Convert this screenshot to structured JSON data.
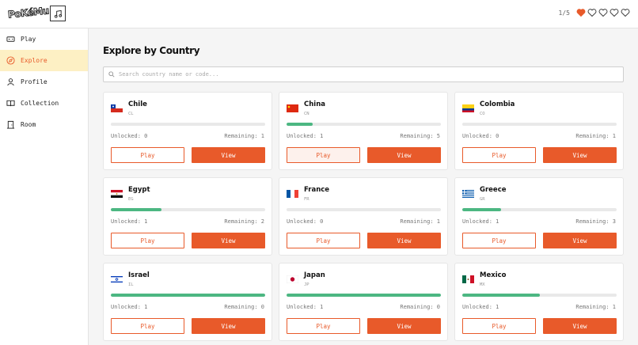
{
  "app": {
    "logo_text": "PoKéMu"
  },
  "header": {
    "lives_label": "1/5",
    "hearts": [
      true,
      false,
      false,
      false,
      false
    ],
    "heart_color": "#e85a2a"
  },
  "sidebar": {
    "items": [
      {
        "label": "Play",
        "icon": "gamepad-icon",
        "active": false
      },
      {
        "label": "Explore",
        "icon": "compass-icon",
        "active": true
      },
      {
        "label": "Profile",
        "icon": "user-icon",
        "active": false
      },
      {
        "label": "Collection",
        "icon": "book-icon",
        "active": false
      },
      {
        "label": "Room",
        "icon": "door-icon",
        "active": false
      }
    ]
  },
  "main": {
    "title": "Explore by Country",
    "search": {
      "placeholder": "Search country name or code...",
      "value": ""
    },
    "unlocked_label": "Unlocked:",
    "remaining_label": "Remaining:",
    "play_label": "Play",
    "view_label": "View",
    "countries": [
      {
        "name": "Chile",
        "code": "CL",
        "unlocked": 0,
        "remaining": 1,
        "progress": 0.0,
        "flag": "chile-flag-icon"
      },
      {
        "name": "China",
        "code": "CN",
        "unlocked": 1,
        "remaining": 5,
        "progress": 0.17,
        "flag": "china-flag-icon"
      },
      {
        "name": "Colombia",
        "code": "CO",
        "unlocked": 0,
        "remaining": 1,
        "progress": 0.0,
        "flag": "colombia-flag-icon"
      },
      {
        "name": "Egypt",
        "code": "EG",
        "unlocked": 1,
        "remaining": 2,
        "progress": 0.33,
        "flag": "egypt-flag-icon"
      },
      {
        "name": "France",
        "code": "FR",
        "unlocked": 0,
        "remaining": 1,
        "progress": 0.0,
        "flag": "france-flag-icon"
      },
      {
        "name": "Greece",
        "code": "GR",
        "unlocked": 1,
        "remaining": 3,
        "progress": 0.25,
        "flag": "greece-flag-icon"
      },
      {
        "name": "Israel",
        "code": "IL",
        "unlocked": 1,
        "remaining": 0,
        "progress": 1.0,
        "flag": "israel-flag-icon"
      },
      {
        "name": "Japan",
        "code": "JP",
        "unlocked": 1,
        "remaining": 0,
        "progress": 1.0,
        "flag": "japan-flag-icon"
      },
      {
        "name": "Mexico",
        "code": "MX",
        "unlocked": 1,
        "remaining": 1,
        "progress": 0.5,
        "flag": "mexico-flag-icon"
      }
    ]
  }
}
